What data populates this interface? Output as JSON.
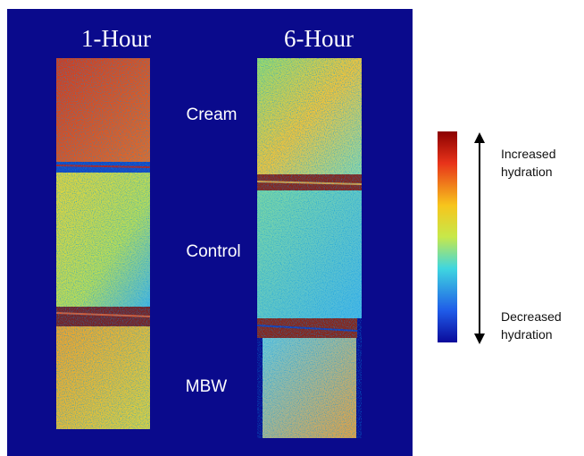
{
  "panel": {
    "columns": [
      "1-Hour",
      "6-Hour"
    ],
    "rows": [
      "Cream",
      "Control",
      "MBW"
    ]
  },
  "legend": {
    "top": [
      "Increased",
      "hydration"
    ],
    "bottom": [
      "Decreased",
      "hydration"
    ]
  }
}
